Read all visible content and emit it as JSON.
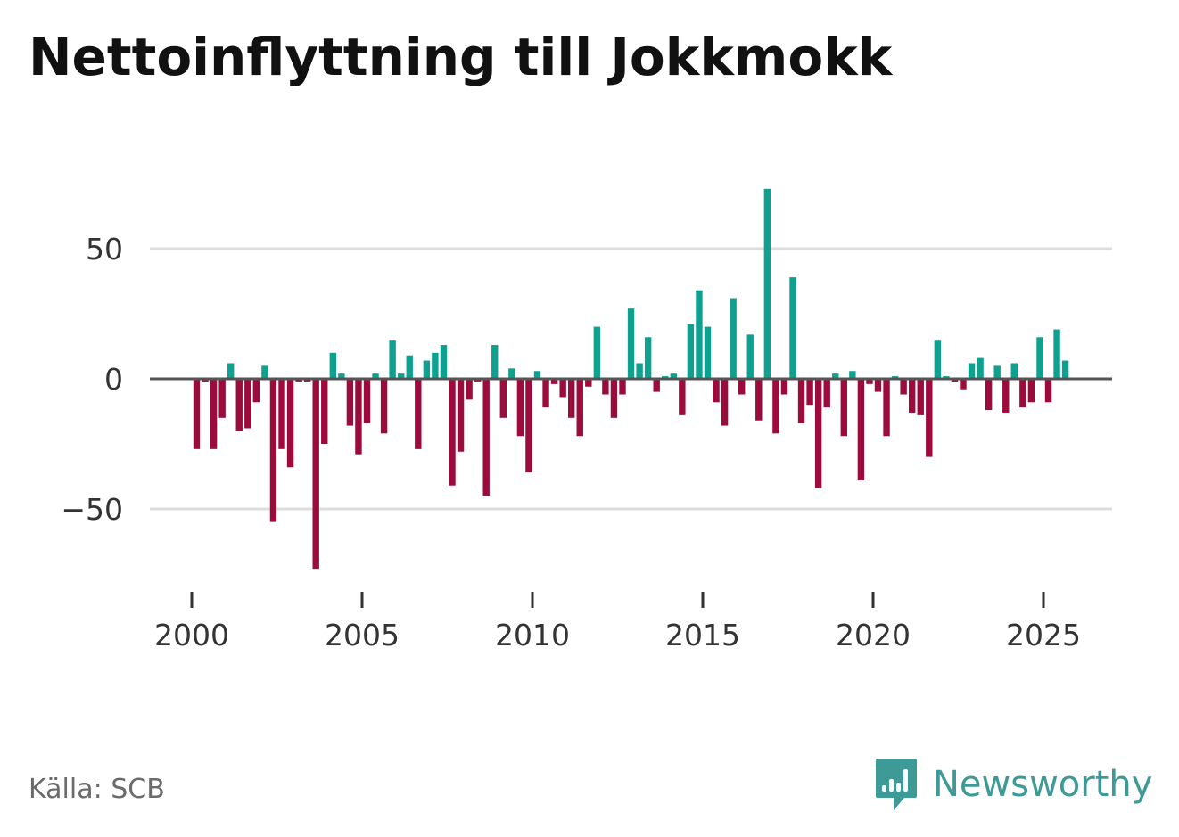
{
  "title": "Nettoinflyttning till Jokkmokk",
  "source": "Källa: SCB",
  "brand": {
    "name": "Newsworthy",
    "icon": "newsworthy-logo-icon"
  },
  "colors": {
    "positive": "#10a090",
    "negative": "#9b0b3b",
    "grid": "#dddddd",
    "zero_line": "#555555"
  },
  "chart_data": {
    "type": "bar",
    "title": "Nettoinflyttning till Jokkmokk",
    "xlabel": "",
    "ylabel": "",
    "x_start": 2000.0,
    "x_step": 0.25,
    "x_ticks": [
      2000,
      2005,
      2010,
      2015,
      2020,
      2025
    ],
    "y_ticks": [
      50,
      0,
      -50
    ],
    "y_tick_labels": [
      "50",
      "0",
      "−50"
    ],
    "xlim": [
      1998.75,
      2027.0
    ],
    "ylim": [
      -80,
      80
    ],
    "grid": true,
    "values": [
      -27,
      -1,
      -27,
      -15,
      6,
      -20,
      -19,
      -9,
      5,
      -55,
      -27,
      -34,
      -1,
      -1,
      -73,
      -25,
      10,
      2,
      -18,
      -29,
      -17,
      2,
      -21,
      15,
      2,
      9,
      -27,
      7,
      10,
      13,
      -41,
      -28,
      -8,
      -1,
      -45,
      13,
      -15,
      4,
      -22,
      -36,
      3,
      -11,
      -2,
      -7,
      -15,
      -22,
      -3,
      20,
      -6,
      -15,
      -6,
      27,
      6,
      16,
      -5,
      1,
      2,
      -14,
      21,
      34,
      20,
      -9,
      -18,
      31,
      -6,
      17,
      -16,
      73,
      -21,
      -6,
      39,
      -17,
      -10,
      -42,
      -11,
      2,
      -22,
      3,
      -39,
      -2,
      -5,
      -22,
      1,
      -6,
      -13,
      -14,
      -30,
      15,
      1,
      -1,
      -4,
      6,
      8,
      -12,
      5,
      -13,
      6,
      -11,
      -9,
      16,
      -9,
      19,
      7
    ]
  }
}
